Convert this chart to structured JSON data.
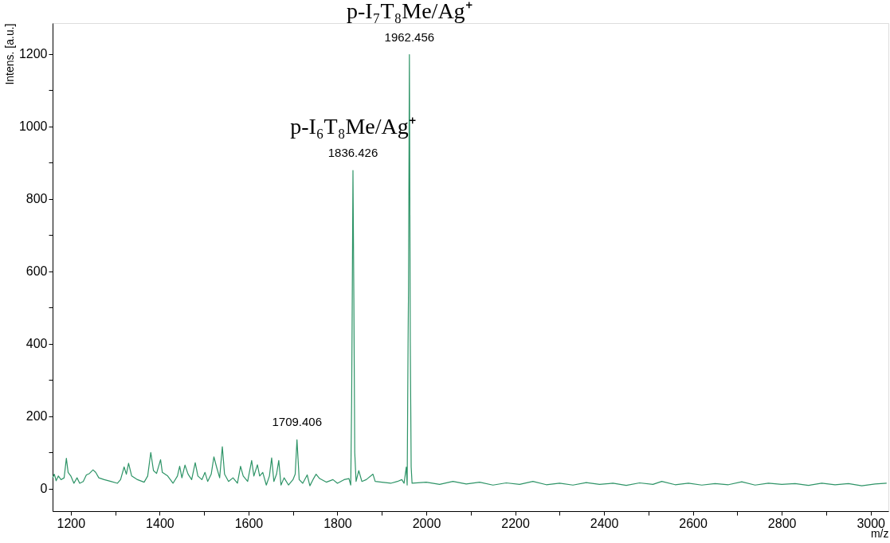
{
  "chart_data": {
    "type": "line",
    "xlabel": "m/z",
    "ylabel": "Intens. [a.u.]",
    "x": [
      1159,
      1163,
      1167,
      1172,
      1178,
      1185,
      1190,
      1194,
      1200,
      1207,
      1214,
      1220,
      1228,
      1235,
      1242,
      1250,
      1256,
      1263,
      1275,
      1290,
      1305,
      1312,
      1320,
      1325,
      1330,
      1337,
      1350,
      1365,
      1373,
      1380,
      1386,
      1393,
      1402,
      1406,
      1418,
      1430,
      1440,
      1445,
      1450,
      1457,
      1464,
      1472,
      1480,
      1486,
      1495,
      1502,
      1508,
      1516,
      1522,
      1528,
      1535,
      1541,
      1546,
      1555,
      1565,
      1575,
      1582,
      1588,
      1598,
      1607,
      1612,
      1620,
      1625,
      1632,
      1640,
      1647,
      1652,
      1657,
      1663,
      1668,
      1673,
      1680,
      1690,
      1700,
      1705,
      1709,
      1714,
      1722,
      1732,
      1738,
      1745,
      1752,
      1760,
      1775,
      1790,
      1800,
      1815,
      1826,
      1830,
      1832,
      1833,
      1835,
      1837,
      1839,
      1842,
      1848,
      1855,
      1865,
      1880,
      1885,
      1900,
      1920,
      1935,
      1945,
      1950,
      1955,
      1957,
      1959,
      1960,
      1962,
      1964,
      1966,
      1968,
      2000,
      2030,
      2060,
      2090,
      2120,
      2150,
      2180,
      2210,
      2240,
      2270,
      2300,
      2330,
      2360,
      2390,
      2420,
      2450,
      2480,
      2510,
      2530,
      2560,
      2590,
      2620,
      2650,
      2680,
      2710,
      2740,
      2770,
      2800,
      2830,
      2860,
      2890,
      2920,
      2950,
      2980,
      3010,
      3036
    ],
    "series": [
      {
        "color": "#2e9467",
        "values": [
          30,
          40,
          22,
          35,
          25,
          30,
          84,
          45,
          35,
          15,
          30,
          15,
          20,
          38,
          42,
          52,
          45,
          30,
          25,
          20,
          15,
          25,
          60,
          40,
          70,
          35,
          25,
          18,
          35,
          100,
          50,
          42,
          80,
          45,
          35,
          15,
          35,
          62,
          30,
          65,
          40,
          25,
          72,
          35,
          25,
          45,
          20,
          40,
          88,
          60,
          30,
          116,
          40,
          20,
          30,
          15,
          62,
          35,
          20,
          78,
          35,
          66,
          35,
          45,
          10,
          35,
          85,
          20,
          40,
          78,
          10,
          30,
          10,
          25,
          40,
          135,
          25,
          15,
          38,
          8,
          25,
          40,
          28,
          18,
          25,
          15,
          25,
          28,
          10,
          240,
          440,
          878,
          525,
          100,
          20,
          50,
          20,
          25,
          40,
          20,
          18,
          15,
          20,
          25,
          15,
          60,
          10,
          400,
          550,
          1198,
          405,
          60,
          15,
          18,
          12,
          20,
          13,
          18,
          10,
          16,
          12,
          20,
          11,
          15,
          10,
          17,
          12,
          15,
          9,
          16,
          12,
          20,
          11,
          15,
          10,
          14,
          11,
          19,
          10,
          15,
          12,
          14,
          9,
          15,
          11,
          14,
          8,
          13,
          15
        ]
      }
    ],
    "xlim": [
      1159,
      3040
    ],
    "xticks": [
      1200,
      {
        "value": 1300,
        "label": null
      },
      1400,
      {
        "value": 1500,
        "label": null
      },
      1600,
      {
        "value": 1700,
        "label": null
      },
      1800,
      {
        "value": 1900,
        "label": null
      },
      2000,
      {
        "value": 2100,
        "label": null
      },
      2200,
      {
        "value": 2300,
        "label": null
      },
      2400,
      {
        "value": 2500,
        "label": null
      },
      2600,
      {
        "value": 2700,
        "label": null
      },
      2800,
      {
        "value": 2900,
        "label": null
      },
      3000
    ],
    "ylim": [
      -62,
      1285
    ],
    "yticks": [
      0,
      {
        "value": 100,
        "label": null
      },
      200,
      {
        "value": 300,
        "label": null
      },
      400,
      {
        "value": 500,
        "label": null
      },
      600,
      {
        "value": 700,
        "label": null
      },
      800,
      {
        "value": 900,
        "label": null
      },
      1000,
      {
        "value": 1100,
        "label": null
      },
      1200
    ],
    "grid": false,
    "marker": "none",
    "annotations": [
      {
        "text": "p-I₇T₈Me/Ag⁺",
        "x": 1962,
        "y": 1198
      },
      {
        "text": "1962.456",
        "x": 1962,
        "y": 1198
      },
      {
        "text": "p-I₆T₈Me/Ag⁺",
        "x": 1835,
        "y": 878
      },
      {
        "text": "1836.426",
        "x": 1835,
        "y": 878
      },
      {
        "text": "1709.406",
        "x": 1709,
        "y": 135
      }
    ]
  }
}
